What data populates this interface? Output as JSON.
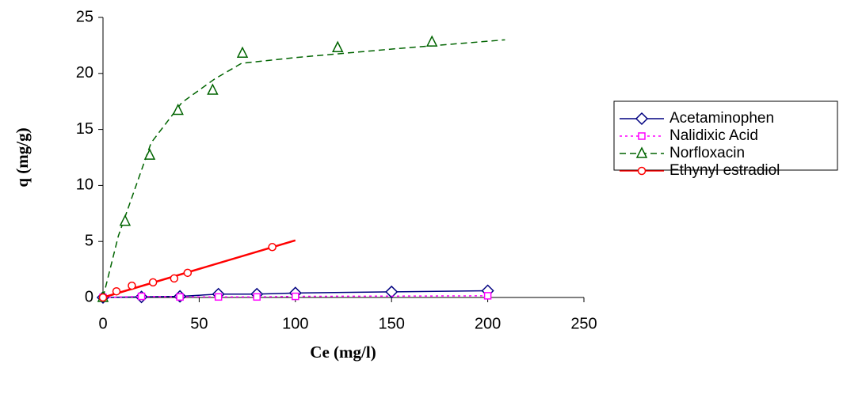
{
  "chart_data": {
    "type": "scatter",
    "x_label": "Ce (mg/l)",
    "y_label": "q (mg/g)",
    "xlim": [
      0,
      250
    ],
    "xticks": [
      0,
      50,
      100,
      150,
      200,
      250
    ],
    "ylim": [
      0,
      25
    ],
    "yticks": [
      0,
      5,
      10,
      15,
      20,
      25
    ],
    "grid": false,
    "legend": "right",
    "series": [
      {
        "name": "Acetaminophen",
        "color": "#000080",
        "marker": "diamond",
        "dash": "solid",
        "x": [
          0,
          20,
          40,
          60,
          80,
          100,
          150,
          200
        ],
        "values": [
          0,
          0.05,
          0.1,
          0.3,
          0.3,
          0.4,
          0.5,
          0.6
        ]
      },
      {
        "name": "Nalidixic Acid",
        "color": "#ff00ff",
        "marker": "square",
        "dash": "dot",
        "x": [
          0,
          20,
          40,
          60,
          80,
          100,
          200
        ],
        "values": [
          0,
          0.1,
          0.05,
          0.05,
          0.05,
          0.1,
          0.15
        ]
      },
      {
        "name": "Norfloxacin",
        "color": "#006400",
        "marker": "triangle",
        "dash": "dash",
        "x": [
          0,
          11.5,
          24.3,
          39,
          57,
          72.5,
          122,
          171
        ],
        "values": [
          0,
          6.8,
          12.7,
          16.7,
          18.5,
          21.8,
          22.3,
          22.8
        ],
        "fit": {
          "x": [
            0,
            8,
            25,
            41,
            58,
            72,
            99,
            152,
            209
          ],
          "values": [
            0,
            5.5,
            13.8,
            17.4,
            19.5,
            20.9,
            21.4,
            22.2,
            23.0
          ]
        }
      },
      {
        "name": "Ethynyl estradiol",
        "color": "#ff0000",
        "marker": "circle",
        "dash": "solid",
        "x": [
          0,
          7,
          15,
          26,
          37,
          44,
          88
        ],
        "values": [
          0,
          0.55,
          1.05,
          1.35,
          1.7,
          2.2,
          4.5
        ],
        "fit": {
          "x": [
            0,
            100
          ],
          "values": [
            0,
            5.1
          ]
        }
      }
    ]
  }
}
